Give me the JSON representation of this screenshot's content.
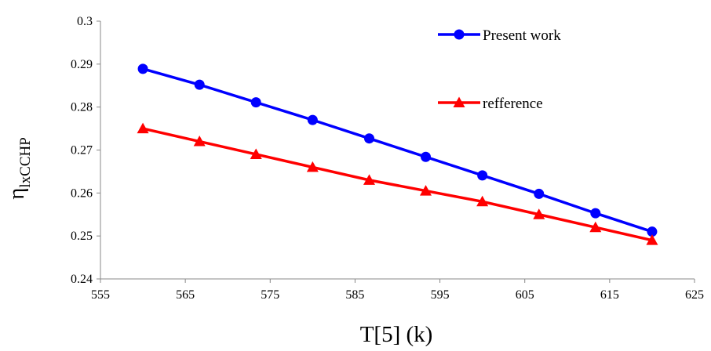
{
  "chart_data": {
    "type": "line",
    "title": "",
    "xlabel": "T[5] (k)",
    "ylabel": {
      "base": "η",
      "subscript": "lxCCHP"
    },
    "xlim": [
      555,
      625
    ],
    "ylim": [
      0.24,
      0.3
    ],
    "xticks": [
      555,
      565,
      575,
      585,
      595,
      605,
      615,
      625
    ],
    "yticks": [
      0.24,
      0.25,
      0.26,
      0.27,
      0.28,
      0.29,
      0.3
    ],
    "grid": false,
    "legend_position": "top-right",
    "series": [
      {
        "name": "Present work",
        "color": "#0000ff",
        "marker": "circle",
        "x": [
          560,
          566.67,
          573.33,
          580,
          586.67,
          593.33,
          600,
          606.67,
          613.33,
          620
        ],
        "y": [
          0.2889,
          0.2852,
          0.2811,
          0.277,
          0.2727,
          0.2684,
          0.2641,
          0.2598,
          0.2553,
          0.251
        ]
      },
      {
        "name": "refference",
        "color": "#ff0000",
        "marker": "triangle",
        "x": [
          560,
          566.67,
          573.33,
          580,
          586.67,
          593.33,
          600,
          606.67,
          613.33,
          620
        ],
        "y": [
          0.275,
          0.272,
          0.269,
          0.266,
          0.263,
          0.2605,
          0.258,
          0.255,
          0.252,
          0.249
        ]
      }
    ]
  }
}
